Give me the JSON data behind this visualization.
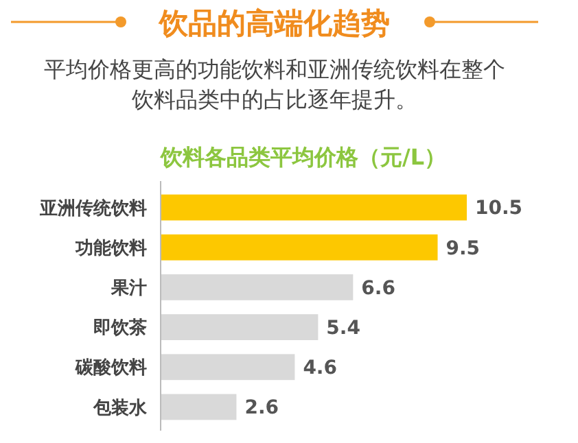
{
  "chart_data": {
    "type": "bar",
    "orientation": "horizontal",
    "title": "饮品的高端化趋势",
    "subtitle": "平均价格更高的功能饮料和亚洲传统饮料在整个饮料品类中的占比逐年提升。",
    "xlabel": "饮料各品类平均价格（元/L）",
    "categories": [
      "亚洲传统饮料",
      "功能饮料",
      "果汁",
      "即饮茶",
      "碳酸饮料",
      "包装水"
    ],
    "values": [
      10.5,
      9.5,
      6.6,
      5.4,
      4.6,
      2.6
    ],
    "colors": [
      "#fdc800",
      "#fdc800",
      "#d9d9d9",
      "#d9d9d9",
      "#d9d9d9",
      "#d9d9d9"
    ],
    "data_labels": true
  }
}
